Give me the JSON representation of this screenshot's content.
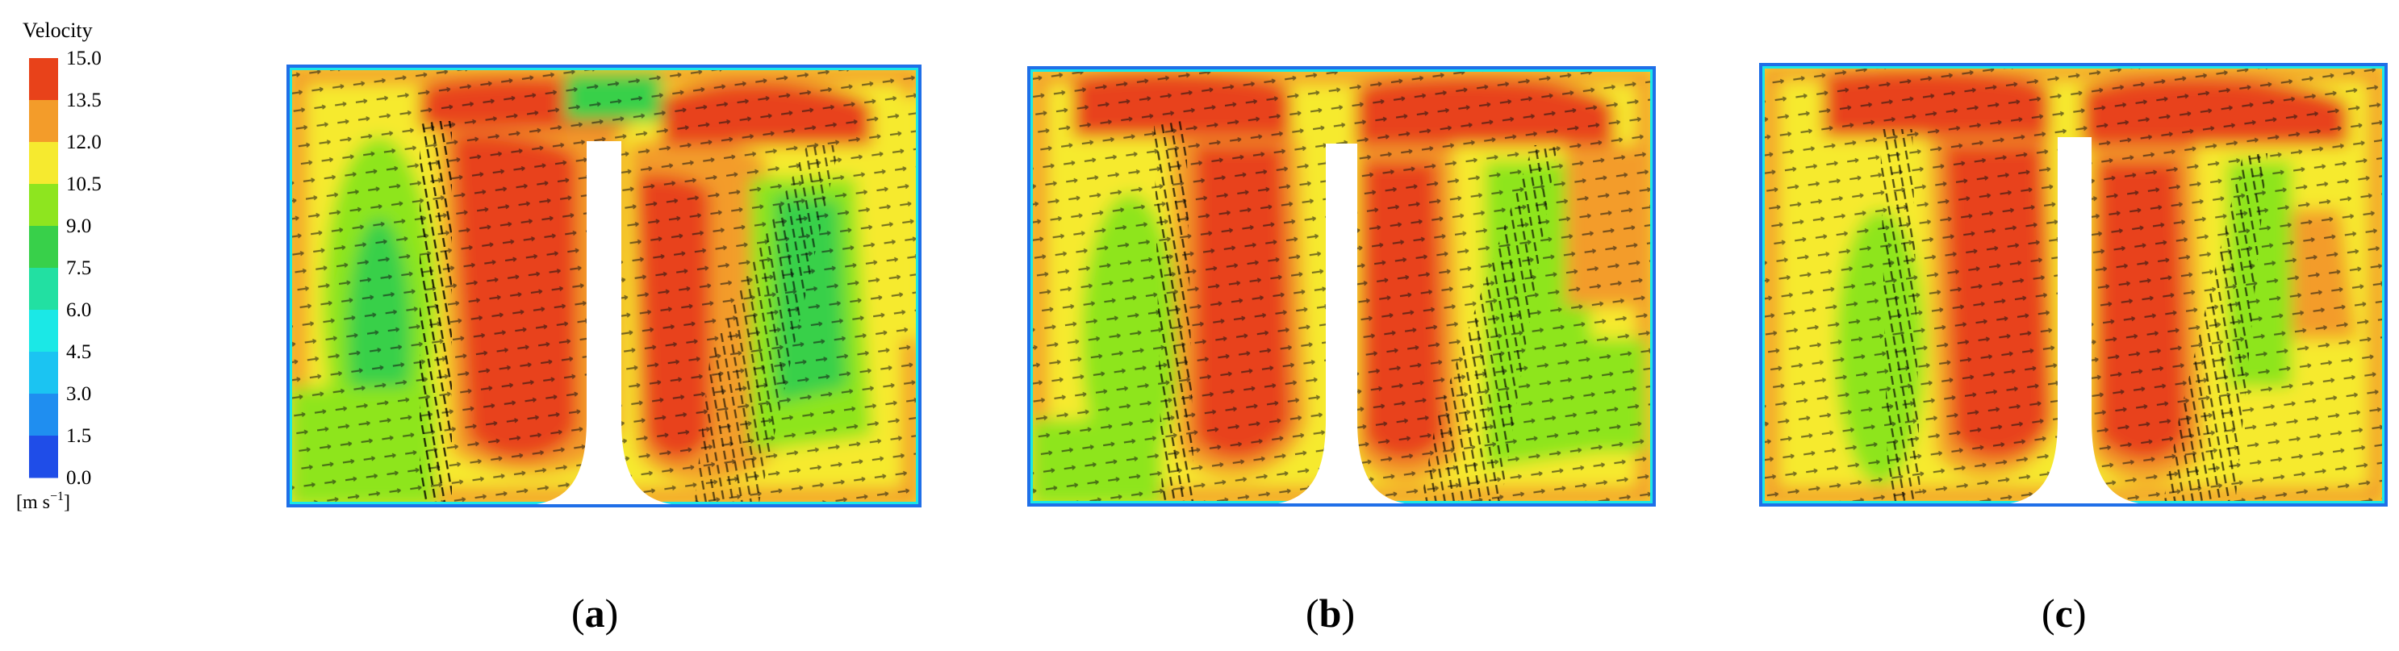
{
  "legend": {
    "title": "Velocity",
    "ticks": [
      "15.0",
      "13.5",
      "12.0",
      "10.5",
      "9.0",
      "7.5",
      "6.0",
      "4.5",
      "3.0",
      "1.5",
      "0.0"
    ],
    "unit": "[m s",
    "unit_exp": "−1",
    "unit_close": "]",
    "colors": [
      "#e8421a",
      "#f39c2a",
      "#f6ea2f",
      "#8ee51f",
      "#38d04a",
      "#22e0a2",
      "#1be8e6",
      "#1bc4f2",
      "#1f8ef0",
      "#1f4de8"
    ]
  },
  "panels": [
    {
      "label": "a",
      "paren_open": "(",
      "paren_close": ")"
    },
    {
      "label": "b",
      "paren_open": "(",
      "paren_close": ")"
    },
    {
      "label": "c",
      "paren_open": "(",
      "paren_close": ")"
    }
  ]
}
